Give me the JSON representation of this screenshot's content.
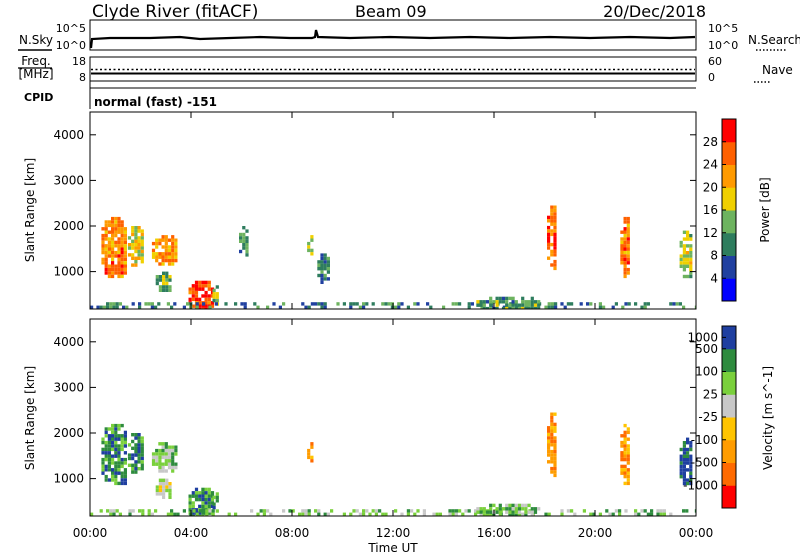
{
  "header": {
    "station": "Clyde River (fitACF)",
    "beam": "Beam 09",
    "date": "20/Dec/2018"
  },
  "summary": {
    "nsky_label": "N.Sky",
    "nsearch_label": "N.Search",
    "nsky_ticks": [
      "10^5",
      "10^0"
    ],
    "nsearch_ticks": [
      "10^5",
      "10^0"
    ],
    "freq_label_1": "Freq.",
    "freq_label_2": "[MHz]",
    "freq_ticks": [
      "18",
      "8"
    ],
    "nave_label": "Nave",
    "nave_ticks": [
      "60",
      "0"
    ],
    "cpid_label": "CPID",
    "cpid_text": "normal (fast) -151"
  },
  "colors": {
    "power_scale": [
      "#0000ff",
      "#2040a0",
      "#2e7d5e",
      "#6db35f",
      "#f0d000",
      "#ff9a00",
      "#ff6000",
      "#ff0000"
    ],
    "velocity_scale": [
      "#ff0000",
      "#ff6a00",
      "#ff9c00",
      "#ffc400",
      "#c8c8c8",
      "#7ad03c",
      "#2e8b3e",
      "#1f3fa0"
    ]
  },
  "chart_data": [
    {
      "type": "heatmap",
      "title": "",
      "xlabel": "",
      "ylabel": "Slant Range [km]",
      "x_tick_labels": [
        "00:00",
        "04:00",
        "08:00",
        "12:00",
        "16:00",
        "20:00",
        "00:00"
      ],
      "xlim_hours": [
        0,
        24
      ],
      "y_tick_labels": [
        "1000",
        "2000",
        "3000",
        "4000"
      ],
      "y_ticks": [
        1000,
        2000,
        3000,
        4000
      ],
      "ylim": [
        180,
        4500
      ],
      "colorbar": {
        "label": "Power [dB]",
        "tick_labels": [
          "4",
          "8",
          "12",
          "16",
          "20",
          "24",
          "28"
        ],
        "ticks": [
          4,
          8,
          12,
          16,
          20,
          24,
          28
        ],
        "range": [
          0,
          32
        ]
      },
      "patches": [
        {
          "t0": 0.45,
          "t1": 1.45,
          "r0": 900,
          "r1": 2200,
          "value": 24
        },
        {
          "t0": 1.5,
          "t1": 2.1,
          "r0": 1150,
          "r1": 2000,
          "value": 18
        },
        {
          "t0": 2.45,
          "t1": 3.45,
          "r0": 1200,
          "r1": 1800,
          "value": 22
        },
        {
          "t0": 2.6,
          "t1": 3.2,
          "r0": 600,
          "r1": 1000,
          "value": 14
        },
        {
          "t0": 3.9,
          "t1": 4.9,
          "r0": 200,
          "r1": 800,
          "value": 28
        },
        {
          "t0": 4.85,
          "t1": 5.0,
          "r0": 300,
          "r1": 700,
          "value": 14
        },
        {
          "t0": 5.9,
          "t1": 6.2,
          "r0": 1300,
          "r1": 2000,
          "value": 12
        },
        {
          "t0": 8.6,
          "t1": 8.8,
          "r0": 1400,
          "r1": 1800,
          "value": 14
        },
        {
          "t0": 9.0,
          "t1": 9.4,
          "r0": 800,
          "r1": 1400,
          "value": 10
        },
        {
          "t0": 18.1,
          "t1": 18.45,
          "r0": 1050,
          "r1": 2450,
          "value": 26
        },
        {
          "t0": 21.0,
          "t1": 21.3,
          "r0": 900,
          "r1": 2200,
          "value": 24
        },
        {
          "t0": 23.35,
          "t1": 23.8,
          "r0": 900,
          "r1": 1900,
          "value": 16
        },
        {
          "t0": 0.0,
          "t1": 24.0,
          "r0": 180,
          "r1": 330,
          "value": 10
        },
        {
          "t0": 15.3,
          "t1": 17.8,
          "r0": 180,
          "r1": 450,
          "value": 12
        }
      ]
    },
    {
      "type": "heatmap",
      "title": "",
      "xlabel": "Time UT",
      "ylabel": "Slant Range [km]",
      "x_tick_labels": [
        "00:00",
        "04:00",
        "08:00",
        "12:00",
        "16:00",
        "20:00",
        "00:00"
      ],
      "xlim_hours": [
        0,
        24
      ],
      "y_tick_labels": [
        "1000",
        "2000",
        "3000",
        "4000"
      ],
      "y_ticks": [
        1000,
        2000,
        3000,
        4000
      ],
      "ylim": [
        180,
        4500
      ],
      "colorbar": {
        "label": "Velocity [m s^-1]",
        "tick_labels": [
          "-1000",
          "-500",
          "-100",
          "-25",
          "25",
          "100",
          "500",
          "1000"
        ],
        "bins": 8
      },
      "patches": [
        {
          "t0": 0.45,
          "t1": 1.45,
          "r0": 900,
          "r1": 2200,
          "bin": 6
        },
        {
          "t0": 1.5,
          "t1": 2.1,
          "r0": 1150,
          "r1": 2000,
          "bin": 6
        },
        {
          "t0": 2.45,
          "t1": 3.45,
          "r0": 1200,
          "r1": 1800,
          "bin": 5
        },
        {
          "t0": 2.6,
          "t1": 3.2,
          "r0": 600,
          "r1": 1000,
          "bin": 4
        },
        {
          "t0": 3.9,
          "t1": 4.9,
          "r0": 200,
          "r1": 800,
          "bin": 6
        },
        {
          "t0": 4.85,
          "t1": 5.0,
          "r0": 300,
          "r1": 700,
          "bin": 6
        },
        {
          "t0": 8.6,
          "t1": 8.8,
          "r0": 1400,
          "r1": 1800,
          "bin": 2
        },
        {
          "t0": 18.1,
          "t1": 18.45,
          "r0": 1050,
          "r1": 2450,
          "bin": 2
        },
        {
          "t0": 21.0,
          "t1": 21.3,
          "r0": 900,
          "r1": 2200,
          "bin": 2
        },
        {
          "t0": 23.35,
          "t1": 23.8,
          "r0": 900,
          "r1": 1900,
          "bin": 7
        },
        {
          "t0": 0.0,
          "t1": 24.0,
          "r0": 180,
          "r1": 330,
          "bin": 5
        },
        {
          "t0": 15.3,
          "t1": 17.8,
          "r0": 180,
          "r1": 450,
          "bin": 5
        }
      ]
    }
  ]
}
